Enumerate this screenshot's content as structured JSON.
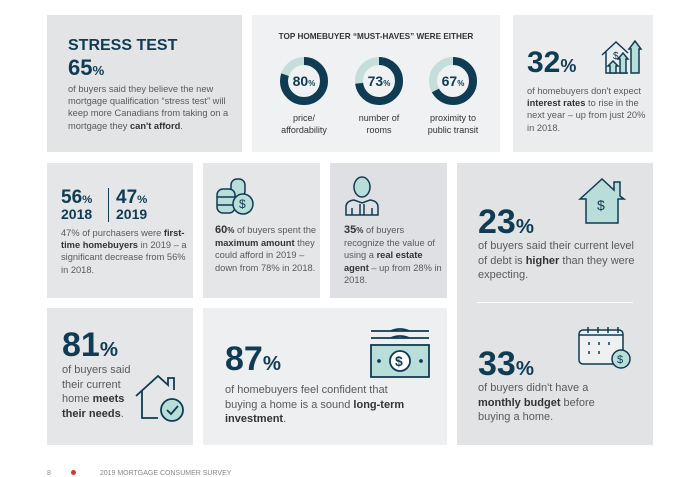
{
  "stress_test": {
    "title": "STRESS TEST",
    "value": "65",
    "unit": "%",
    "text_pre": "of buyers said they believe the new mortgage qualification “stress test” will keep more Canadians from taking on a mortgage they ",
    "text_bold": "can't afford",
    "text_post": "."
  },
  "must_haves": {
    "title": "TOP HOMEBUYER “MUST-HAVES” WERE EITHER",
    "items": [
      {
        "value": 80,
        "label": "80",
        "unit": "%",
        "caption": "price/ affordability"
      },
      {
        "value": 73,
        "label": "73",
        "unit": "%",
        "caption": "number of rooms"
      },
      {
        "value": 67,
        "label": "67",
        "unit": "%",
        "caption": "proximity to public transit"
      }
    ]
  },
  "interest": {
    "value": "32",
    "unit": "%",
    "text_pre": "of homebuyers don't expect ",
    "text_bold": "interest rates",
    "text_post": " to rise in the next year – up from just 20% in 2018."
  },
  "first_time": {
    "v1": "56",
    "y1": "2018",
    "v2": "47",
    "y2": "2019",
    "unit": "%",
    "text_pre": "47% of purchasers were ",
    "text_bold": "first-time homebuyers",
    "text_post": " in 2019 – a significant decrease from 56% in 2018."
  },
  "max_amount": {
    "value": "60",
    "unit": "%",
    "text_pre": " of buyers spent the ",
    "text_bold": "maximum amount",
    "text_post": " they could afford in 2019 – down from 78% in 2018."
  },
  "agent": {
    "value": "35",
    "unit": "%",
    "text_pre": " of buyers recognize the value of using a ",
    "text_bold": "real estate agent",
    "text_post": " – up from 28% in 2018."
  },
  "debt": {
    "value": "23",
    "unit": "%",
    "text_pre": "of buyers said their current level of debt is ",
    "text_bold": "higher",
    "text_post": " than they were expecting."
  },
  "budget": {
    "value": "33",
    "unit": "%",
    "text_pre": "of buyers didn't have a ",
    "text_bold": "monthly budget",
    "text_post": " before buying a home."
  },
  "meets_needs": {
    "value": "81",
    "unit": "%",
    "text_pre": "of buyers said their current home ",
    "text_bold": "meets their needs",
    "text_post": "."
  },
  "investment": {
    "value": "87",
    "unit": "%",
    "text_pre": "of homebuyers feel confident that buying a home is a sound ",
    "text_bold": "long-term investment",
    "text_post": "."
  },
  "footer": {
    "page": "8",
    "title": "2019 MORTGAGE CONSUMER SURVEY"
  },
  "colors": {
    "navy": "#0f3b53",
    "teal": "#b9ddd8"
  }
}
